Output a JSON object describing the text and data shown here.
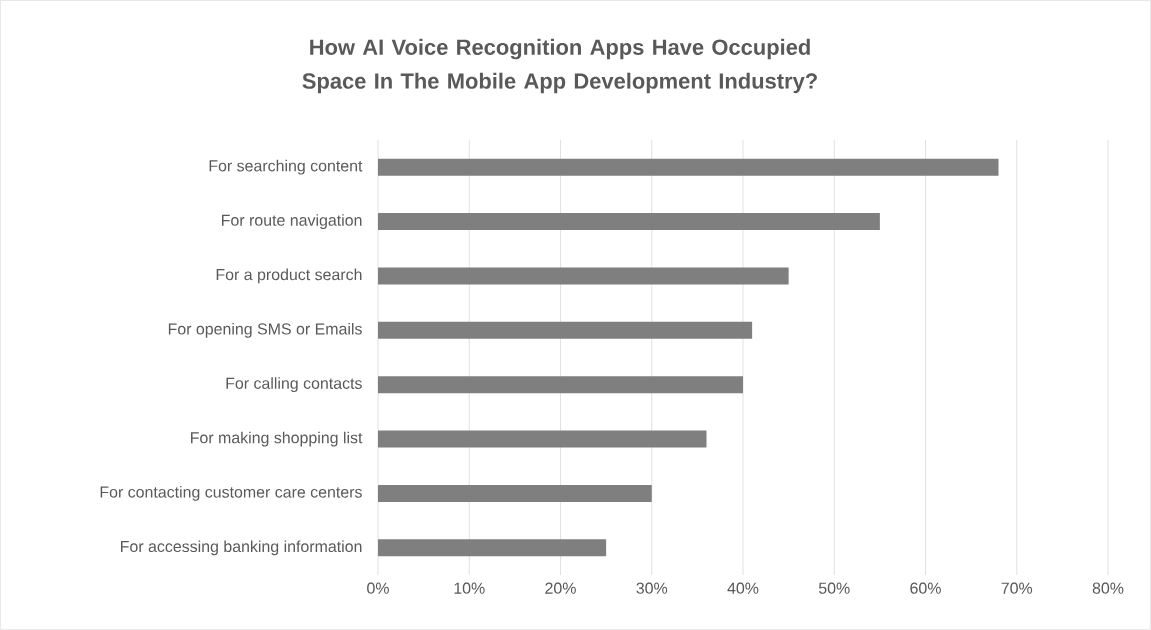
{
  "chart_data": {
    "type": "bar",
    "orientation": "horizontal",
    "title": "How AI Voice Recognition Apps Have Occupied Space In The Mobile App Development Industry?",
    "categories": [
      "For searching content",
      "For route navigation",
      "For a product search",
      "For opening SMS or Emails",
      "For calling contacts",
      "For making shopping list",
      "For contacting customer care centers",
      "For accessing banking information"
    ],
    "values": [
      68,
      55,
      45,
      41,
      40,
      36,
      30,
      25
    ],
    "color": "#7f7f7f",
    "xlim": [
      0,
      80
    ],
    "xticks": [
      {
        "value": 0,
        "label": "0%"
      },
      {
        "value": 10,
        "label": "10%"
      },
      {
        "value": 20,
        "label": "20%"
      },
      {
        "value": 30,
        "label": "30%"
      },
      {
        "value": 40,
        "label": "40%"
      },
      {
        "value": 50,
        "label": "50%"
      },
      {
        "value": 60,
        "label": "60%"
      },
      {
        "value": 70,
        "label": "70%"
      },
      {
        "value": 80,
        "label": "80%"
      }
    ],
    "grid": "x"
  }
}
